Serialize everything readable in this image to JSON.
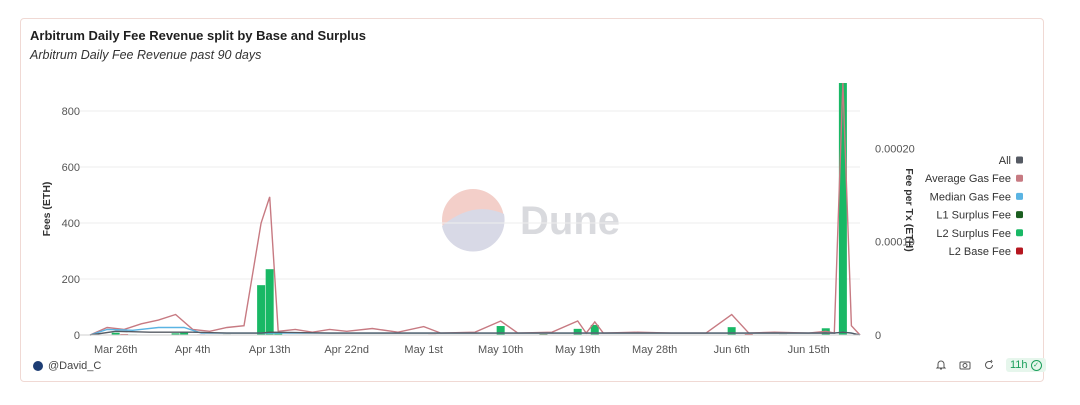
{
  "header": {
    "title": "Arbitrum Daily Fee Revenue split by Base and Surplus",
    "subtitle": "Arbitrum Daily Fee Revenue past 90 days"
  },
  "watermark": {
    "text": "Dune"
  },
  "footer": {
    "author": "@David_C",
    "refresh_age": "11h",
    "icons": [
      "notify-icon",
      "camera-icon",
      "refresh-icon",
      "check-icon"
    ]
  },
  "colors": {
    "all": "#555a63",
    "average_gas_fee": "#c77a82",
    "median_gas_fee": "#5ab4e3",
    "l1_surplus_fee": "#1b5e20",
    "l2_surplus_fee": "#19b865",
    "l2_base_fee": "#b5161f",
    "grid": "#eeeeee",
    "axis_text": "#555555"
  },
  "chart_data": {
    "type": "bar",
    "title": "Arbitrum Daily Fee Revenue split by Base and Surplus",
    "subtitle": "Arbitrum Daily Fee Revenue past 90 days",
    "xlabel": "",
    "ylabel": "Fees (ETH)",
    "y2label": "Fee per Tx (ETH)",
    "ylim": [
      0,
      900
    ],
    "y_ticks": [
      0,
      200,
      400,
      600,
      800
    ],
    "y2_ticks": [
      "0",
      "0.00010",
      "0.00020"
    ],
    "y2lim": [
      0,
      0.00027
    ],
    "x_range": [
      "2023-03-23",
      "2023-06-21"
    ],
    "x_ticks": [
      {
        "date": "2023-03-26",
        "label": "Mar 26th"
      },
      {
        "date": "2023-04-04",
        "label": "Apr 4th"
      },
      {
        "date": "2023-04-13",
        "label": "Apr 13th"
      },
      {
        "date": "2023-04-22",
        "label": "Apr 22nd"
      },
      {
        "date": "2023-05-01",
        "label": "May 1st"
      },
      {
        "date": "2023-05-10",
        "label": "May 10th"
      },
      {
        "date": "2023-05-19",
        "label": "May 19th"
      },
      {
        "date": "2023-05-28",
        "label": "May 28th"
      },
      {
        "date": "2023-06-06",
        "label": "Jun 6th"
      },
      {
        "date": "2023-06-15",
        "label": "Jun 15th"
      }
    ],
    "legend_position": "right",
    "grid": true,
    "legend": [
      "All",
      "Average Gas Fee",
      "Median Gas Fee",
      "L1 Surplus Fee",
      "L2 Surplus Fee",
      "L2 Base Fee"
    ],
    "series": [
      {
        "name": "L2 Surplus Fee",
        "kind": "bar",
        "x": [
          "2023-03-26",
          "2023-04-02",
          "2023-04-03",
          "2023-04-12",
          "2023-04-13",
          "2023-04-14",
          "2023-05-10",
          "2023-05-19",
          "2023-05-21",
          "2023-06-06",
          "2023-06-17",
          "2023-06-19"
        ],
        "values": [
          8,
          6,
          12,
          178,
          235,
          10,
          32,
          22,
          36,
          28,
          24,
          900
        ]
      },
      {
        "name": "L2 Base Fee",
        "kind": "bar",
        "x": [
          "2023-03-27",
          "2023-04-05",
          "2023-05-02",
          "2023-06-08"
        ],
        "values": [
          3,
          2,
          2,
          3
        ]
      },
      {
        "name": "L1 Surplus Fee",
        "kind": "bar",
        "x": [
          "2023-03-28",
          "2023-04-08",
          "2023-05-15",
          "2023-06-12"
        ],
        "values": [
          2,
          2,
          3,
          2
        ]
      },
      {
        "name": "Average Gas Fee",
        "kind": "line",
        "x": [
          "2023-03-23",
          "2023-03-25",
          "2023-03-27",
          "2023-03-29",
          "2023-03-31",
          "2023-04-02",
          "2023-04-04",
          "2023-04-06",
          "2023-04-08",
          "2023-04-10",
          "2023-04-12",
          "2023-04-13",
          "2023-04-14",
          "2023-04-16",
          "2023-04-18",
          "2023-04-20",
          "2023-04-22",
          "2023-04-25",
          "2023-04-28",
          "2023-05-01",
          "2023-05-03",
          "2023-05-07",
          "2023-05-10",
          "2023-05-12",
          "2023-05-16",
          "2023-05-19",
          "2023-05-20",
          "2023-05-21",
          "2023-05-22",
          "2023-05-26",
          "2023-05-30",
          "2023-06-03",
          "2023-06-06",
          "2023-06-08",
          "2023-06-11",
          "2023-06-15",
          "2023-06-17",
          "2023-06-18",
          "2023-06-19",
          "2023-06-20",
          "2023-06-21"
        ],
        "values": [
          0,
          8e-06,
          6e-06,
          1.2e-05,
          1.6e-05,
          2.2e-05,
          6e-06,
          4e-06,
          8e-06,
          1e-05,
          0.00012,
          0.000148,
          4e-06,
          6e-06,
          3e-06,
          6e-06,
          4e-06,
          7e-06,
          3e-06,
          9e-06,
          2e-06,
          3e-06,
          1.5e-05,
          2e-06,
          3e-06,
          1.5e-05,
          2e-06,
          1.4e-05,
          2e-06,
          3e-06,
          2e-06,
          2e-06,
          2.2e-05,
          2e-06,
          3e-06,
          2e-06,
          4e-06,
          2e-06,
          0.000295,
          1e-05,
          0
        ]
      },
      {
        "name": "Median Gas Fee",
        "kind": "line",
        "x": [
          "2023-03-23",
          "2023-03-25",
          "2023-03-28",
          "2023-03-31",
          "2023-04-03",
          "2023-04-05",
          "2023-04-08",
          "2023-04-12",
          "2023-04-13",
          "2023-04-14",
          "2023-04-20",
          "2023-05-01",
          "2023-05-10",
          "2023-05-20",
          "2023-06-06",
          "2023-06-18",
          "2023-06-19",
          "2023-06-20",
          "2023-06-21"
        ],
        "values": [
          0,
          6e-06,
          5e-06,
          8e-06,
          8e-06,
          2e-06,
          2e-06,
          2e-06,
          2e-06,
          2e-06,
          2e-06,
          2e-06,
          2e-06,
          2e-06,
          2e-06,
          2e-06,
          3e-06,
          2e-06,
          0
        ]
      },
      {
        "name": "All",
        "kind": "line",
        "x": [
          "2023-03-23",
          "2023-03-26",
          "2023-03-30",
          "2023-04-04",
          "2023-04-08",
          "2023-04-12",
          "2023-04-13",
          "2023-04-20",
          "2023-05-01",
          "2023-05-10",
          "2023-05-20",
          "2023-06-06",
          "2023-06-18",
          "2023-06-19",
          "2023-06-20",
          "2023-06-21"
        ],
        "values": [
          0,
          4e-06,
          3e-06,
          3e-06,
          2e-06,
          2e-06,
          3e-06,
          2e-06,
          2e-06,
          2e-06,
          2e-06,
          2e-06,
          2e-06,
          3e-06,
          2e-06,
          0
        ]
      }
    ]
  }
}
